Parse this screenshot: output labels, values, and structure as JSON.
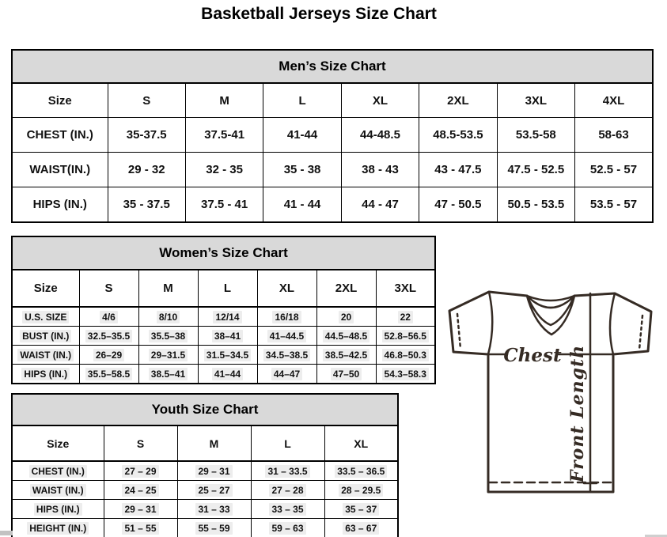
{
  "page_title": "Basketball Jerseys Size Chart",
  "colors": {
    "table_header_bg": "#d9d9d9",
    "table_border": "#000000",
    "jersey_line": "#352b24",
    "cell_highlight": "#ededed"
  },
  "tables": {
    "mens": {
      "title": "Men’s Size Chart",
      "columns": [
        "Size",
        "S",
        "M",
        "L",
        "XL",
        "2XL",
        "3XL",
        "4XL"
      ],
      "rows": [
        {
          "label": "CHEST (IN.)",
          "values": [
            "35-37.5",
            "37.5-41",
            "41-44",
            "44-48.5",
            "48.5-53.5",
            "53.5-58",
            "58-63"
          ]
        },
        {
          "label": "WAIST(IN.)",
          "values": [
            "29 - 32",
            "32 - 35",
            "35 - 38",
            "38 - 43",
            "43 - 47.5",
            "47.5 - 52.5",
            "52.5 - 57"
          ]
        },
        {
          "label": "HIPS (IN.)",
          "values": [
            "35 - 37.5",
            "37.5 - 41",
            "41 - 44",
            "44 - 47",
            "47 - 50.5",
            "50.5 - 53.5",
            "53.5 - 57"
          ]
        }
      ]
    },
    "womens": {
      "title": "Women’s Size Chart",
      "columns": [
        "Size",
        "S",
        "M",
        "L",
        "XL",
        "2XL",
        "3XL"
      ],
      "rows": [
        {
          "label": "U.S. SIZE",
          "values": [
            "4/6",
            "8/10",
            "12/14",
            "16/18",
            "20",
            "22"
          ]
        },
        {
          "label": "BUST (IN.)",
          "values": [
            "32.5–35.5",
            "35.5–38",
            "38–41",
            "41–44.5",
            "44.5–48.5",
            "52.8–56.5"
          ]
        },
        {
          "label": "WAIST (IN.)",
          "values": [
            "26–29",
            "29–31.5",
            "31.5–34.5",
            "34.5–38.5",
            "38.5–42.5",
            "46.8–50.3"
          ]
        },
        {
          "label": "HIPS (IN.)",
          "values": [
            "35.5–58.5",
            "38.5–41",
            "41–44",
            "44–47",
            "47–50",
            "54.3–58.3"
          ]
        }
      ]
    },
    "youth": {
      "title": "Youth Size Chart",
      "columns": [
        "Size",
        "S",
        "M",
        "L",
        "XL"
      ],
      "rows": [
        {
          "label": "CHEST (IN.)",
          "values": [
            "27 – 29",
            "29 – 31",
            "31 – 33.5",
            "33.5 – 36.5"
          ]
        },
        {
          "label": "WAIST (IN.)",
          "values": [
            "24 – 25",
            "25 – 27",
            "27 – 28",
            "28 – 29.5"
          ]
        },
        {
          "label": "HIPS (IN.)",
          "values": [
            "29 – 31",
            "31 – 33",
            "33 – 35",
            "35 – 37"
          ]
        },
        {
          "label": "HEIGHT (IN.)",
          "values": [
            "51 – 55",
            "55 – 59",
            "59 – 63",
            "63 – 67"
          ]
        }
      ]
    }
  },
  "diagram": {
    "chest_label": "Chest",
    "front_length_label": "Front Length"
  }
}
